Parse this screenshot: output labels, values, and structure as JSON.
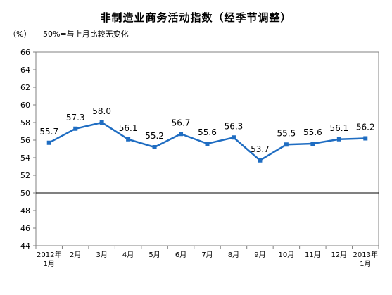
{
  "chart_data": {
    "type": "line",
    "title": "非制造业商务活动指数（经季节调整）",
    "unit": "（%）",
    "note": "50%=与上月比较无变化",
    "categories": [
      [
        "2012年",
        "1月"
      ],
      [
        "2月"
      ],
      [
        "3月"
      ],
      [
        "4月"
      ],
      [
        "5月"
      ],
      [
        "6月"
      ],
      [
        "7月"
      ],
      [
        "8月"
      ],
      [
        "9月"
      ],
      [
        "10月"
      ],
      [
        "11月"
      ],
      [
        "12月"
      ],
      [
        "2013年",
        "1月"
      ]
    ],
    "series": [
      {
        "values": [
          55.7,
          57.3,
          58.0,
          56.1,
          55.2,
          56.7,
          55.6,
          56.3,
          53.7,
          55.5,
          55.6,
          56.1,
          56.2
        ]
      }
    ],
    "data_labels": [
      "55.7",
      "57.3",
      "58.0",
      "56.1",
      "55.2",
      "56.7",
      "55.6",
      "56.3",
      "53.7",
      "55.5",
      "55.6",
      "56.1",
      "56.2"
    ],
    "ylim": [
      44,
      66
    ],
    "yticks": [
      44,
      46,
      48,
      50,
      52,
      54,
      56,
      58,
      60,
      62,
      64,
      66
    ],
    "reference_line": 50,
    "grid": false,
    "colors": {
      "line": "#1f6dc2",
      "marker": "#1f6dc2",
      "axis": "#808080",
      "reference": "#000000"
    }
  }
}
